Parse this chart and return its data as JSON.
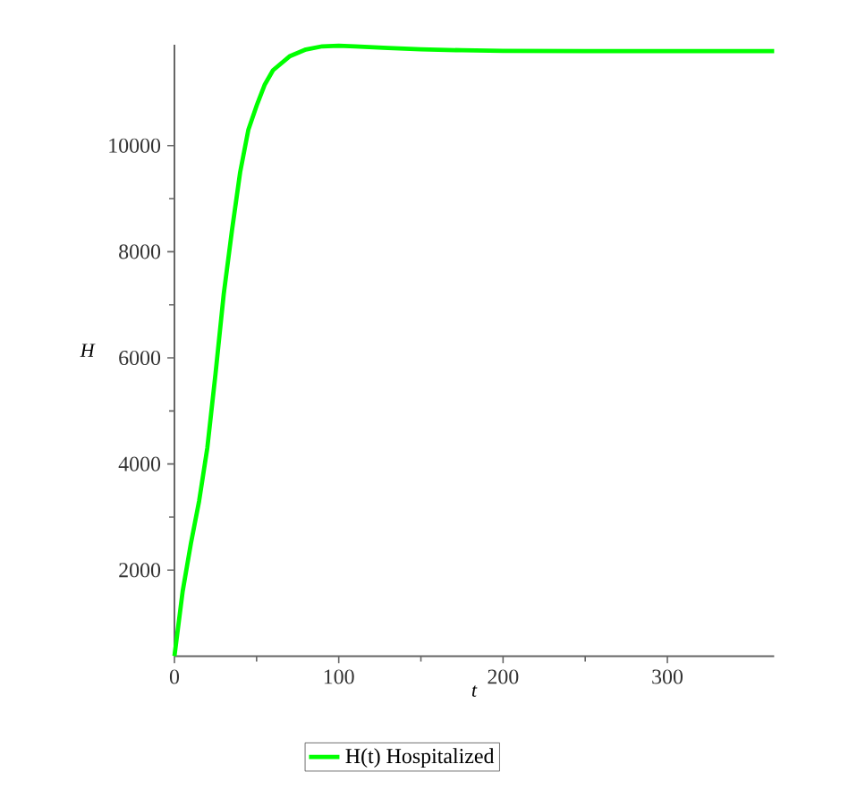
{
  "chart_data": {
    "type": "line",
    "xlabel": "*t*",
    "ylabel": "*H*",
    "x": [
      0,
      5,
      10,
      15,
      20,
      25,
      30,
      35,
      40,
      45,
      50,
      55,
      60,
      70,
      80,
      90,
      100,
      110,
      130,
      150,
      175,
      200,
      250,
      300,
      365
    ],
    "series": [
      {
        "name": "H(t) Hospitalized",
        "color": "#00ff00",
        "values": [
          380,
          1600,
          2500,
          3300,
          4300,
          5700,
          7200,
          8400,
          9500,
          10300,
          10750,
          11150,
          11420,
          11680,
          11810,
          11870,
          11880,
          11870,
          11840,
          11815,
          11795,
          11785,
          11780,
          11780,
          11780
        ]
      }
    ],
    "xlim": [
      0,
      365
    ],
    "ylim": [
      380,
      11900
    ],
    "xticks": [
      0,
      100,
      200,
      300
    ],
    "yticks": [
      2000,
      4000,
      6000,
      8000,
      10000
    ],
    "legend": "bottom",
    "grid": false,
    "marker": "none",
    "line_style": "solid"
  }
}
